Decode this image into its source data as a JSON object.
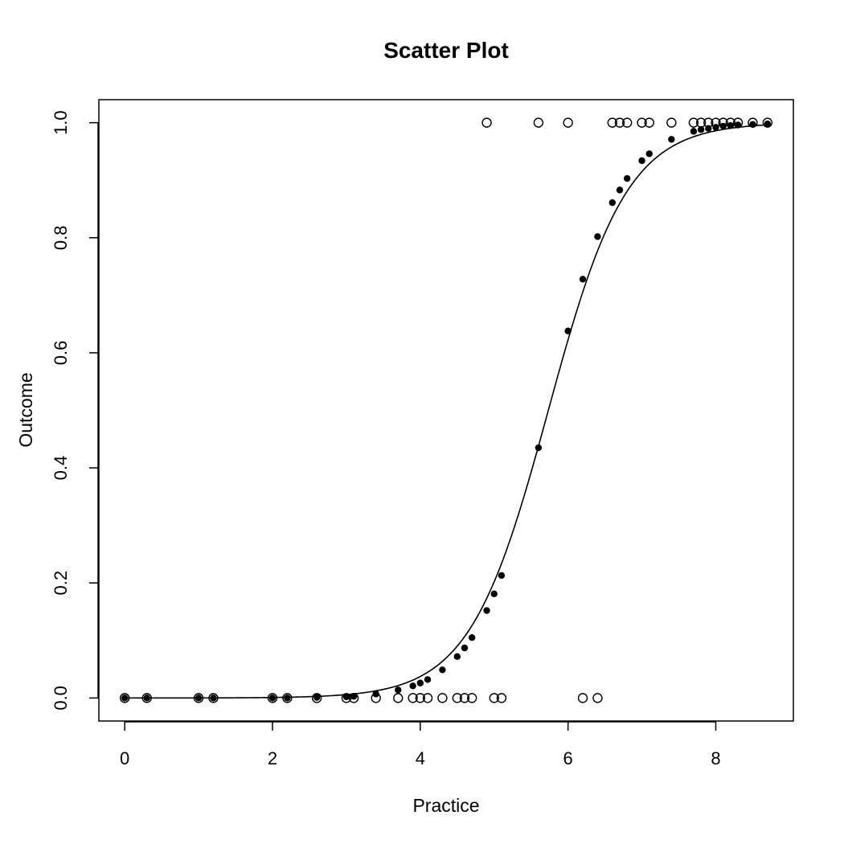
{
  "chart_data": {
    "type": "scatter",
    "title": "Scatter Plot",
    "xlabel": "Practice",
    "ylabel": "Outcome",
    "xlim": [
      -0.35,
      9.05
    ],
    "ylim": [
      -0.04,
      1.04
    ],
    "x_ticks": [
      0,
      2,
      4,
      6,
      8
    ],
    "y_ticks": [
      0.0,
      0.2,
      0.4,
      0.6,
      0.8,
      1.0
    ],
    "x_tick_labels": [
      "0",
      "2",
      "4",
      "6",
      "8"
    ],
    "y_tick_labels": [
      "0.0",
      "0.2",
      "0.4",
      "0.6",
      "0.8",
      "1.0"
    ],
    "grid": false,
    "legend": "none",
    "observed": {
      "marker": "open-circle",
      "points": [
        {
          "x": 0.0,
          "y": 0
        },
        {
          "x": 0.3,
          "y": 0
        },
        {
          "x": 1.0,
          "y": 0
        },
        {
          "x": 1.2,
          "y": 0
        },
        {
          "x": 2.0,
          "y": 0
        },
        {
          "x": 2.2,
          "y": 0
        },
        {
          "x": 2.6,
          "y": 0
        },
        {
          "x": 3.0,
          "y": 0
        },
        {
          "x": 3.1,
          "y": 0
        },
        {
          "x": 3.4,
          "y": 0
        },
        {
          "x": 3.7,
          "y": 0
        },
        {
          "x": 3.9,
          "y": 0
        },
        {
          "x": 4.0,
          "y": 0
        },
        {
          "x": 4.1,
          "y": 0
        },
        {
          "x": 4.3,
          "y": 0
        },
        {
          "x": 4.5,
          "y": 0
        },
        {
          "x": 4.6,
          "y": 0
        },
        {
          "x": 4.7,
          "y": 0
        },
        {
          "x": 5.0,
          "y": 0
        },
        {
          "x": 5.1,
          "y": 0
        },
        {
          "x": 6.2,
          "y": 0
        },
        {
          "x": 6.4,
          "y": 0
        },
        {
          "x": 4.9,
          "y": 1
        },
        {
          "x": 5.6,
          "y": 1
        },
        {
          "x": 6.0,
          "y": 1
        },
        {
          "x": 6.6,
          "y": 1
        },
        {
          "x": 6.7,
          "y": 1
        },
        {
          "x": 6.8,
          "y": 1
        },
        {
          "x": 7.0,
          "y": 1
        },
        {
          "x": 7.1,
          "y": 1
        },
        {
          "x": 7.4,
          "y": 1
        },
        {
          "x": 7.7,
          "y": 1
        },
        {
          "x": 7.8,
          "y": 1
        },
        {
          "x": 7.9,
          "y": 1
        },
        {
          "x": 8.0,
          "y": 1
        },
        {
          "x": 8.1,
          "y": 1
        },
        {
          "x": 8.2,
          "y": 1
        },
        {
          "x": 8.3,
          "y": 1
        },
        {
          "x": 8.5,
          "y": 1
        },
        {
          "x": 8.7,
          "y": 1
        }
      ]
    },
    "fitted": {
      "marker": "filled-circle",
      "points": [
        {
          "x": 0.0,
          "y": 0.0
        },
        {
          "x": 0.3,
          "y": 0.0
        },
        {
          "x": 1.0,
          "y": 0.0
        },
        {
          "x": 1.2,
          "y": 0.0
        },
        {
          "x": 2.0,
          "y": 0.0
        },
        {
          "x": 2.2,
          "y": 0.0
        },
        {
          "x": 2.6,
          "y": 0.001
        },
        {
          "x": 3.0,
          "y": 0.002
        },
        {
          "x": 3.1,
          "y": 0.003
        },
        {
          "x": 3.4,
          "y": 0.007
        },
        {
          "x": 3.7,
          "y": 0.014
        },
        {
          "x": 3.9,
          "y": 0.021
        },
        {
          "x": 4.0,
          "y": 0.026
        },
        {
          "x": 4.1,
          "y": 0.032
        },
        {
          "x": 4.3,
          "y": 0.049
        },
        {
          "x": 4.5,
          "y": 0.072
        },
        {
          "x": 4.6,
          "y": 0.087
        },
        {
          "x": 4.7,
          "y": 0.105
        },
        {
          "x": 4.9,
          "y": 0.152
        },
        {
          "x": 5.0,
          "y": 0.181
        },
        {
          "x": 5.1,
          "y": 0.213
        },
        {
          "x": 5.6,
          "y": 0.435
        },
        {
          "x": 6.0,
          "y": 0.638
        },
        {
          "x": 6.2,
          "y": 0.728
        },
        {
          "x": 6.4,
          "y": 0.802
        },
        {
          "x": 6.6,
          "y": 0.861
        },
        {
          "x": 6.7,
          "y": 0.883
        },
        {
          "x": 6.8,
          "y": 0.903
        },
        {
          "x": 7.0,
          "y": 0.934
        },
        {
          "x": 7.1,
          "y": 0.946
        },
        {
          "x": 7.4,
          "y": 0.971
        },
        {
          "x": 7.7,
          "y": 0.985
        },
        {
          "x": 7.8,
          "y": 0.988
        },
        {
          "x": 7.9,
          "y": 0.99
        },
        {
          "x": 8.0,
          "y": 0.992
        },
        {
          "x": 8.1,
          "y": 0.994
        },
        {
          "x": 8.2,
          "y": 0.995
        },
        {
          "x": 8.3,
          "y": 0.996
        },
        {
          "x": 8.5,
          "y": 0.997
        },
        {
          "x": 8.7,
          "y": 0.998
        }
      ]
    },
    "fit_curve": {
      "model": "logistic",
      "intercept": -10.75,
      "slope": 1.875,
      "x_range": [
        0,
        8.7
      ]
    }
  }
}
